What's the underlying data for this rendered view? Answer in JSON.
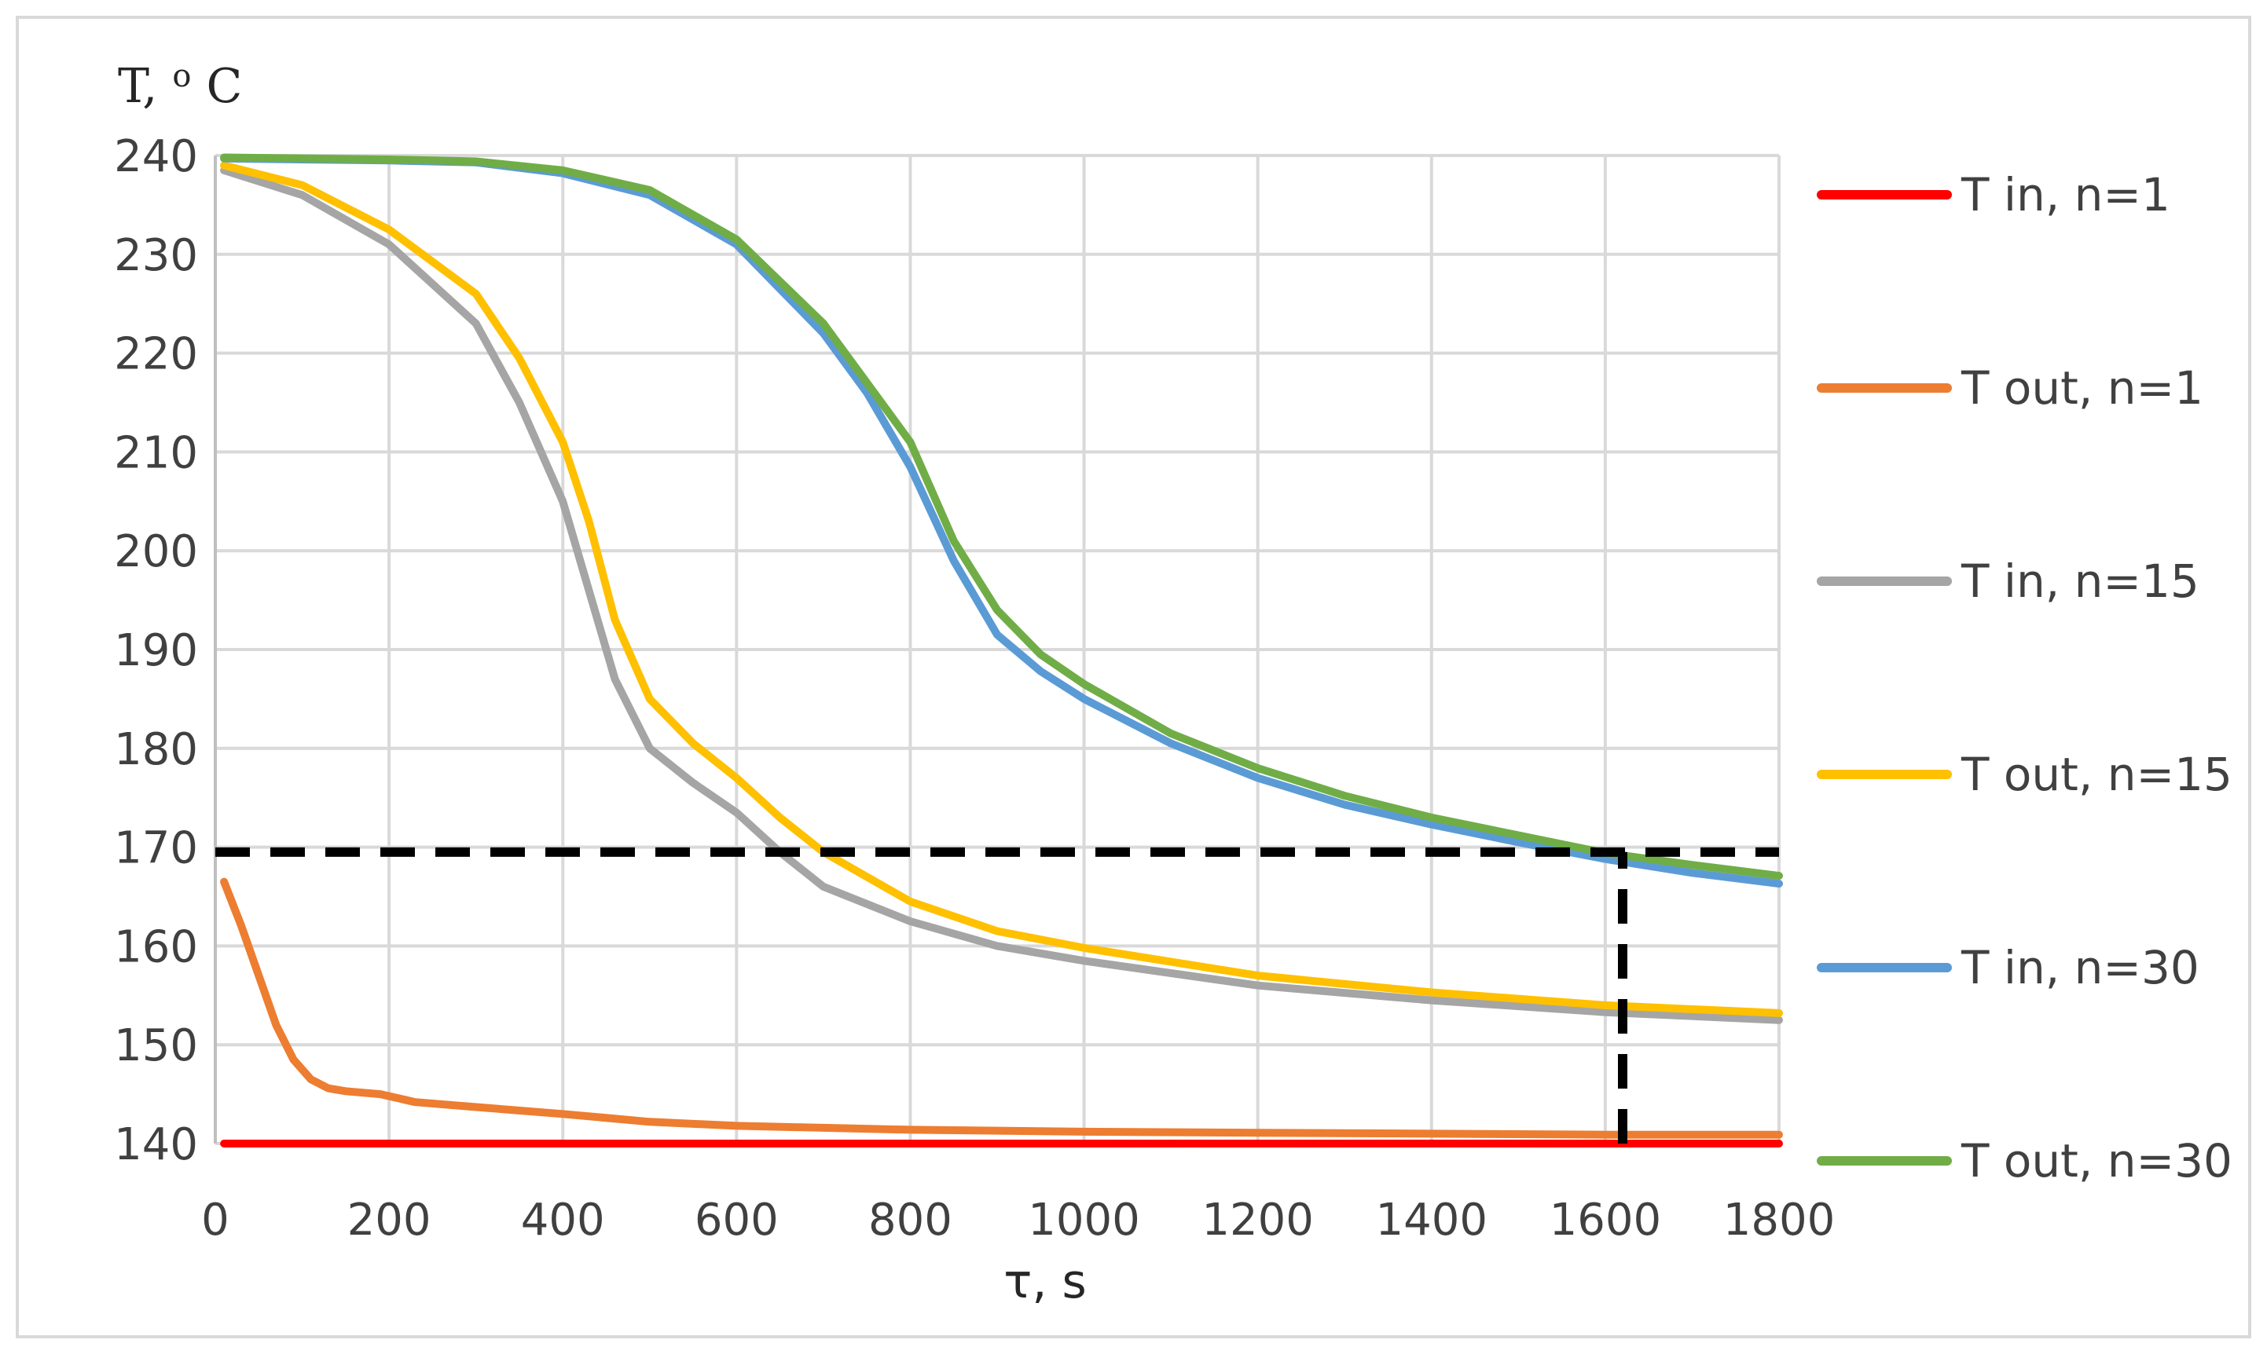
{
  "chart_data": {
    "type": "line",
    "xlabel": "τ, s",
    "ylabel": "T, ",
    "ylabel_sup": "o",
    "ylabel_unit": "C",
    "xlim": [
      0,
      1800
    ],
    "ylim": [
      140,
      240
    ],
    "xticks": [
      0,
      200,
      400,
      600,
      800,
      1000,
      1200,
      1400,
      1600,
      1800
    ],
    "yticks": [
      140,
      150,
      160,
      170,
      180,
      190,
      200,
      210,
      220,
      230,
      240
    ],
    "grid": true,
    "legend_position": "right",
    "series": [
      {
        "name": "T in, n=1",
        "color": "#ff0000",
        "x": [
          10,
          200,
          400,
          600,
          800,
          1000,
          1200,
          1400,
          1600,
          1800
        ],
        "y": [
          140,
          140,
          140,
          140,
          140,
          140,
          140,
          140,
          140,
          140
        ]
      },
      {
        "name": "T out, n=1",
        "color": "#ed7d31",
        "x": [
          10,
          30,
          50,
          70,
          90,
          110,
          130,
          150,
          190,
          230,
          300,
          400,
          500,
          600,
          800,
          1000,
          1200,
          1400,
          1600,
          1800
        ],
        "y": [
          166.5,
          162,
          157,
          152,
          148.5,
          146.5,
          145.6,
          145.3,
          145,
          144.2,
          143.7,
          143,
          142.2,
          141.8,
          141.4,
          141.2,
          141.1,
          141,
          140.9,
          140.9
        ]
      },
      {
        "name": "T in, n=15",
        "color": "#a5a5a5",
        "x": [
          10,
          100,
          200,
          300,
          350,
          400,
          430,
          460,
          500,
          550,
          600,
          650,
          700,
          800,
          900,
          1000,
          1200,
          1400,
          1600,
          1800
        ],
        "y": [
          238.5,
          236,
          231,
          223,
          215,
          205,
          196,
          187,
          180,
          176.5,
          173.5,
          169.5,
          166,
          162.5,
          160,
          158.5,
          156,
          154.5,
          153.3,
          152.5
        ]
      },
      {
        "name": "T out, n=15",
        "color": "#ffc000",
        "x": [
          10,
          100,
          200,
          300,
          350,
          400,
          430,
          460,
          500,
          550,
          600,
          650,
          700,
          800,
          900,
          1000,
          1200,
          1400,
          1600,
          1800
        ],
        "y": [
          239,
          237,
          232.5,
          226,
          219.5,
          211,
          203,
          193,
          185,
          180.5,
          177,
          173,
          169.5,
          164.5,
          161.5,
          159.8,
          157,
          155.3,
          154,
          153.2
        ]
      },
      {
        "name": "T in, n=30",
        "color": "#5b9bd5",
        "x": [
          10,
          200,
          300,
          400,
          500,
          600,
          700,
          750,
          800,
          850,
          900,
          950,
          1000,
          1100,
          1200,
          1300,
          1400,
          1500,
          1600,
          1700,
          1800
        ],
        "y": [
          239.7,
          239.5,
          239.3,
          238.2,
          236,
          231,
          222,
          216,
          208.5,
          199,
          191.5,
          187.8,
          185,
          180.5,
          177,
          174.3,
          172.3,
          170.5,
          168.8,
          167.4,
          166.3
        ]
      },
      {
        "name": "T out, n=30",
        "color": "#70ad47",
        "x": [
          10,
          200,
          300,
          400,
          500,
          600,
          700,
          750,
          800,
          850,
          900,
          950,
          1000,
          1100,
          1200,
          1300,
          1400,
          1500,
          1600,
          1700,
          1800
        ],
        "y": [
          239.8,
          239.6,
          239.4,
          238.5,
          236.5,
          231.5,
          223,
          217,
          211,
          201,
          194,
          189.5,
          186.5,
          181.5,
          178,
          175.2,
          173,
          171.2,
          169.4,
          168.2,
          167.1
        ]
      }
    ],
    "reference_lines": [
      {
        "kind": "horizontal",
        "y": 169.5,
        "x_from": 0,
        "x_to": 1800,
        "style": "dashed",
        "color": "#000000"
      },
      {
        "kind": "vertical",
        "x": 1620,
        "y_from": 140,
        "y_to": 169.5,
        "style": "dashed",
        "color": "#000000"
      }
    ]
  }
}
